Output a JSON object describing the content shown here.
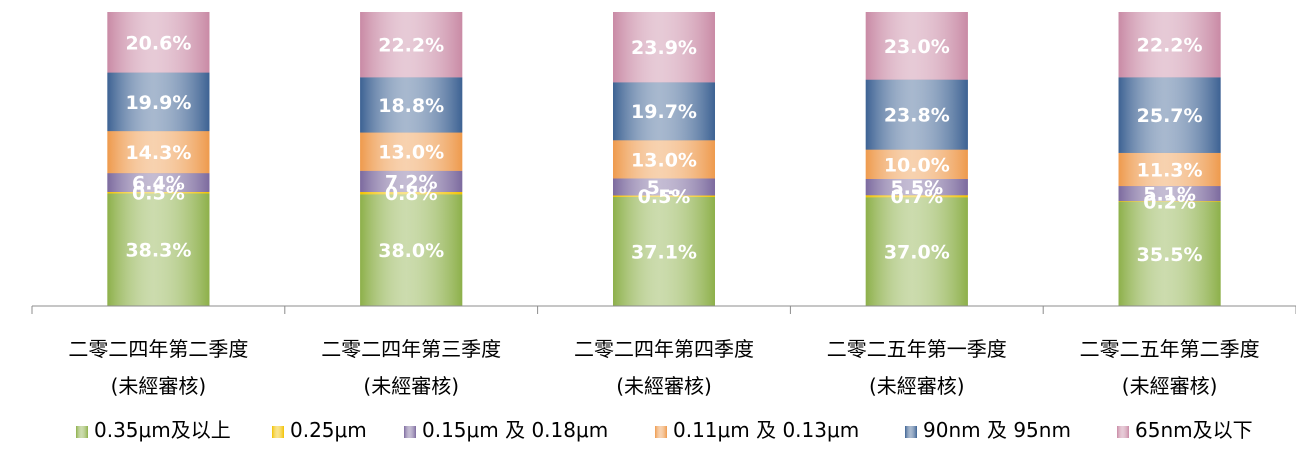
{
  "chart_data": {
    "type": "bar",
    "stacked": true,
    "percent": true,
    "categories": [
      [
        "二零二四年第二季度",
        "(未經審核)"
      ],
      [
        "二零二四年第三季度",
        "(未經審核)"
      ],
      [
        "二零二四年第四季度",
        "(未經審核)"
      ],
      [
        "二零二五年第一季度",
        "(未經審核)"
      ],
      [
        "二零二五年第二季度",
        "(未經審核)"
      ]
    ],
    "series": [
      {
        "name": "0.35μm及以上",
        "color": "#8db04a",
        "values": [
          38.3,
          38.0,
          37.1,
          37.0,
          35.5
        ],
        "labels": [
          "38.3%",
          "38.0%",
          "37.1%",
          "37.0%",
          "35.5%"
        ]
      },
      {
        "name": "0.25μm",
        "color": "#f2c200",
        "values": [
          0.5,
          0.8,
          0.5,
          0.7,
          0.2
        ],
        "labels": [
          "0.5%",
          "0.8%",
          "0.5%",
          "0.7%",
          "0.2%"
        ]
      },
      {
        "name": "0.15μm 及 0.18μm",
        "color": "#7c6a9e",
        "values": [
          6.4,
          7.2,
          5.8,
          5.5,
          5.1
        ],
        "labels": [
          "6.4%",
          "7.2%",
          "5...",
          "5.5%",
          "5.1%"
        ]
      },
      {
        "name": "0.11μm 及 0.13μm",
        "color": "#ee9a4d",
        "values": [
          14.3,
          13.0,
          13.0,
          10.0,
          11.3
        ],
        "labels": [
          "14.3%",
          "13.0%",
          "13.0%",
          "10.0%",
          "11.3%"
        ]
      },
      {
        "name": "90nm 及 95nm",
        "color": "#3d6293",
        "values": [
          19.9,
          18.8,
          19.7,
          23.8,
          25.7
        ],
        "labels": [
          "19.9%",
          "18.8%",
          "19.7%",
          "23.8%",
          "25.7%"
        ]
      },
      {
        "name": "65nm及以下",
        "color": "#c98aa5",
        "values": [
          20.6,
          22.2,
          23.9,
          23.0,
          22.2
        ],
        "labels": [
          "20.6%",
          "22.2%",
          "23.9%",
          "23.0%",
          "22.2%"
        ]
      }
    ],
    "ylim": [
      0,
      100
    ],
    "grid": false,
    "legend_position": "bottom"
  }
}
